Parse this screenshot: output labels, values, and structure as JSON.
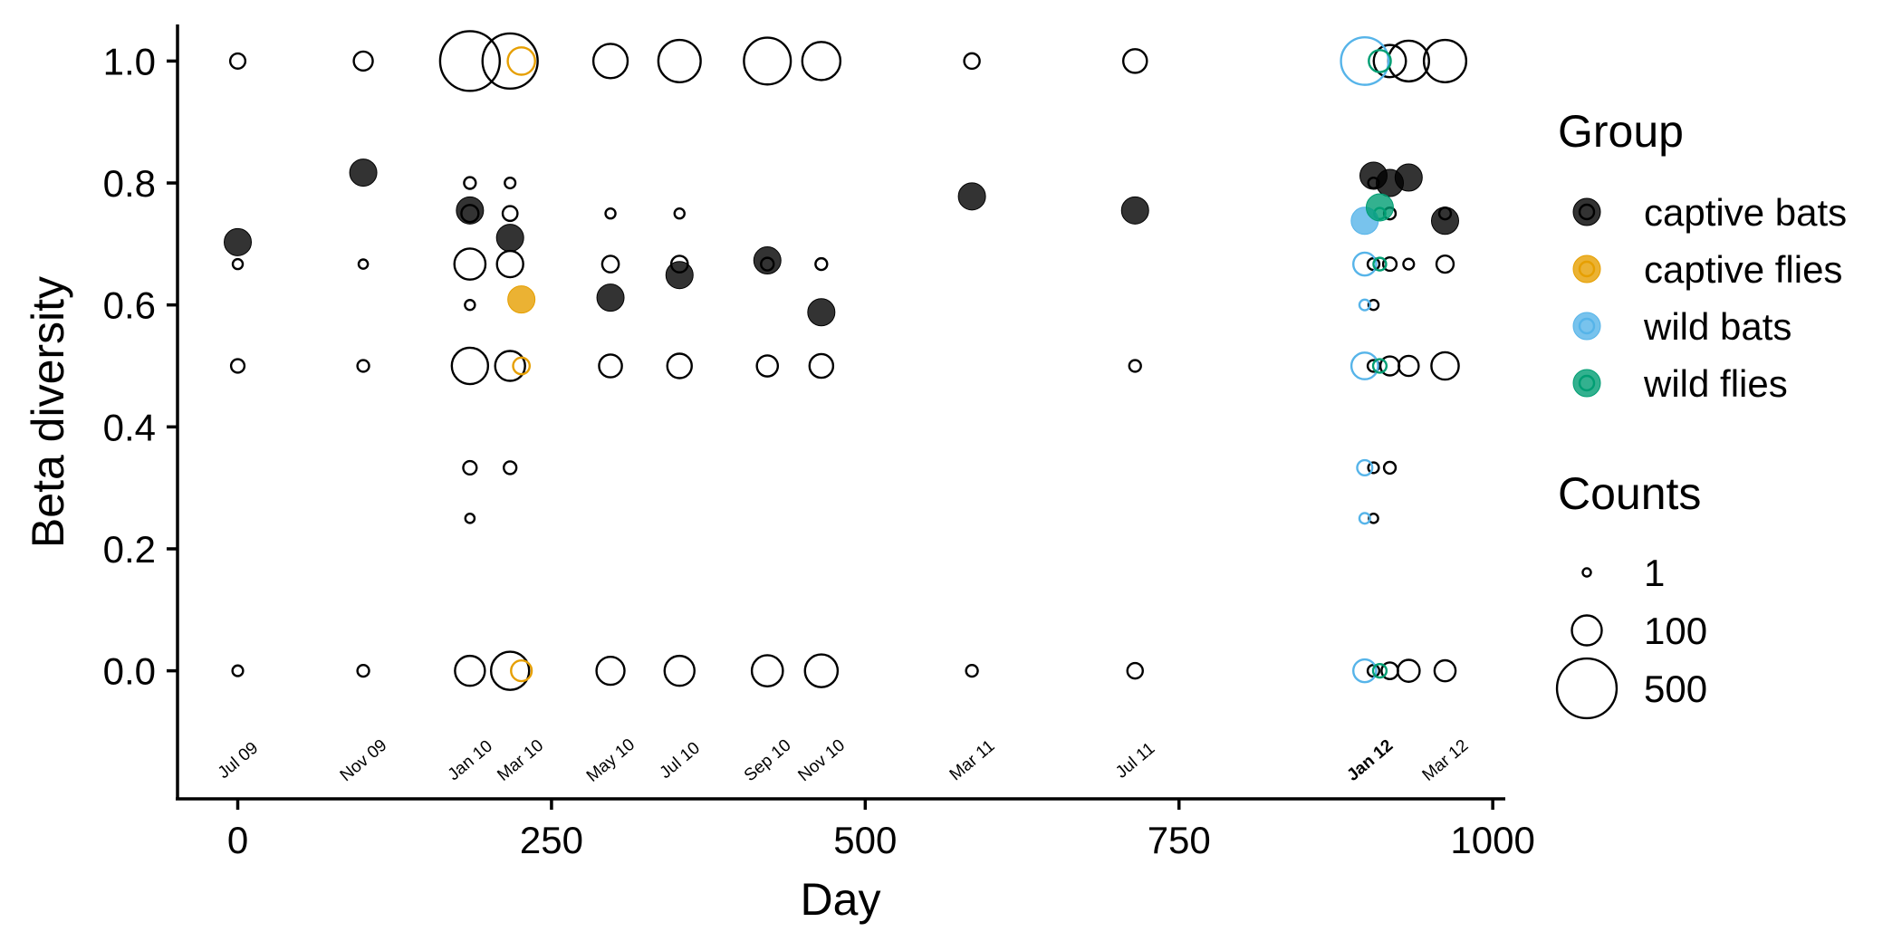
{
  "chart_data": {
    "type": "scatter",
    "title": "",
    "xlabel": "Day",
    "ylabel": "Beta diversity",
    "xlim": [
      -48,
      1010
    ],
    "ylim": [
      -0.21,
      1.06
    ],
    "x_ticks": [
      "0",
      "250",
      "500",
      "750",
      "1000"
    ],
    "x_tick_values": [
      0,
      250,
      500,
      750,
      1000
    ],
    "y_ticks": [
      "0.0",
      "0.2",
      "0.4",
      "0.6",
      "0.8",
      "1.0"
    ],
    "y_tick_values": [
      0,
      0.2,
      0.4,
      0.6,
      0.8,
      1.0
    ],
    "grid": false,
    "legend_placement": "right",
    "date_annotations": [
      {
        "x": 0,
        "label": "Jul 09",
        "bold": false
      },
      {
        "x": 100,
        "label": "Nov 09",
        "bold": false
      },
      {
        "x": 185,
        "label": "Jan 10",
        "bold": false
      },
      {
        "x": 225,
        "label": "Mar 10",
        "bold": false
      },
      {
        "x": 297,
        "label": "May 10",
        "bold": false
      },
      {
        "x": 352,
        "label": "Jul 10",
        "bold": false
      },
      {
        "x": 422,
        "label": "Sep 10",
        "bold": false
      },
      {
        "x": 465,
        "label": "Nov 10",
        "bold": false
      },
      {
        "x": 585,
        "label": "Mar 11",
        "bold": false
      },
      {
        "x": 715,
        "label": "Jul 11",
        "bold": false
      },
      {
        "x": 902,
        "label": "Jan 12",
        "bold": true
      },
      {
        "x": 962,
        "label": "Mar 12",
        "bold": false
      }
    ],
    "groups": [
      {
        "name": "captive bats",
        "color": "#000000"
      },
      {
        "name": "captive flies",
        "color": "#E69F00"
      },
      {
        "name": "wild bats",
        "color": "#56B4E9"
      },
      {
        "name": "wild flies",
        "color": "#009E73"
      }
    ],
    "legend": {
      "group_title": "Group",
      "counts_title": "Counts",
      "counts": [
        {
          "label": "1",
          "value": 1
        },
        {
          "label": "100",
          "value": 100
        },
        {
          "label": "500",
          "value": 500
        }
      ]
    },
    "series": [
      {
        "name": "captive bats",
        "type": "mean",
        "color": "#000000",
        "points": [
          {
            "x": 0,
            "y": 0.703
          },
          {
            "x": 100,
            "y": 0.817
          },
          {
            "x": 185,
            "y": 0.755
          },
          {
            "x": 217,
            "y": 0.71
          },
          {
            "x": 297,
            "y": 0.612
          },
          {
            "x": 352,
            "y": 0.649
          },
          {
            "x": 422,
            "y": 0.673
          },
          {
            "x": 465,
            "y": 0.588
          },
          {
            "x": 585,
            "y": 0.778
          },
          {
            "x": 715,
            "y": 0.755
          },
          {
            "x": 905,
            "y": 0.812
          },
          {
            "x": 918,
            "y": 0.8
          },
          {
            "x": 933,
            "y": 0.809
          },
          {
            "x": 962,
            "y": 0.738
          }
        ]
      },
      {
        "name": "captive flies",
        "type": "mean",
        "color": "#E69F00",
        "points": [
          {
            "x": 226,
            "y": 0.609
          }
        ]
      },
      {
        "name": "wild bats",
        "type": "mean",
        "color": "#56B4E9",
        "points": [
          {
            "x": 898,
            "y": 0.738
          }
        ]
      },
      {
        "name": "wild flies",
        "type": "mean",
        "color": "#009E73",
        "points": [
          {
            "x": 910,
            "y": 0.76
          }
        ]
      },
      {
        "name": "captive bats",
        "type": "counts",
        "color": "#000000",
        "points": [
          {
            "x": 0,
            "y": 1.0,
            "count": 15
          },
          {
            "x": 0,
            "y": 0.667,
            "count": 3
          },
          {
            "x": 0,
            "y": 0.5,
            "count": 10
          },
          {
            "x": 0,
            "y": 0.0,
            "count": 4
          },
          {
            "x": 100,
            "y": 1.0,
            "count": 30
          },
          {
            "x": 100,
            "y": 0.667,
            "count": 2
          },
          {
            "x": 100,
            "y": 0.5,
            "count": 6
          },
          {
            "x": 100,
            "y": 0.0,
            "count": 6
          },
          {
            "x": 185,
            "y": 1.0,
            "count": 500
          },
          {
            "x": 185,
            "y": 0.8,
            "count": 6
          },
          {
            "x": 185,
            "y": 0.75,
            "count": 22
          },
          {
            "x": 185,
            "y": 0.667,
            "count": 110
          },
          {
            "x": 185,
            "y": 0.6,
            "count": 3
          },
          {
            "x": 185,
            "y": 0.5,
            "count": 160
          },
          {
            "x": 185,
            "y": 0.333,
            "count": 10
          },
          {
            "x": 185,
            "y": 0.25,
            "count": 2
          },
          {
            "x": 185,
            "y": 0.0,
            "count": 100
          },
          {
            "x": 217,
            "y": 1.0,
            "count": 420
          },
          {
            "x": 217,
            "y": 0.8,
            "count": 4
          },
          {
            "x": 217,
            "y": 0.75,
            "count": 14
          },
          {
            "x": 217,
            "y": 0.667,
            "count": 72
          },
          {
            "x": 217,
            "y": 0.5,
            "count": 100
          },
          {
            "x": 217,
            "y": 0.333,
            "count": 8
          },
          {
            "x": 217,
            "y": 0.0,
            "count": 180
          },
          {
            "x": 297,
            "y": 1.0,
            "count": 140
          },
          {
            "x": 297,
            "y": 0.75,
            "count": 3
          },
          {
            "x": 297,
            "y": 0.667,
            "count": 20
          },
          {
            "x": 297,
            "y": 0.5,
            "count": 50
          },
          {
            "x": 297,
            "y": 0.0,
            "count": 85
          },
          {
            "x": 352,
            "y": 1.0,
            "count": 230
          },
          {
            "x": 352,
            "y": 0.75,
            "count": 3
          },
          {
            "x": 352,
            "y": 0.667,
            "count": 20
          },
          {
            "x": 352,
            "y": 0.5,
            "count": 60
          },
          {
            "x": 352,
            "y": 0.0,
            "count": 100
          },
          {
            "x": 422,
            "y": 1.0,
            "count": 290
          },
          {
            "x": 422,
            "y": 0.667,
            "count": 8
          },
          {
            "x": 422,
            "y": 0.5,
            "count": 40
          },
          {
            "x": 422,
            "y": 0.0,
            "count": 110
          },
          {
            "x": 465,
            "y": 1.0,
            "count": 180
          },
          {
            "x": 465,
            "y": 0.667,
            "count": 6
          },
          {
            "x": 465,
            "y": 0.5,
            "count": 55
          },
          {
            "x": 465,
            "y": 0.0,
            "count": 125
          },
          {
            "x": 585,
            "y": 1.0,
            "count": 16
          },
          {
            "x": 585,
            "y": 0.0,
            "count": 6
          },
          {
            "x": 715,
            "y": 1.0,
            "count": 55
          },
          {
            "x": 715,
            "y": 0.5,
            "count": 6
          },
          {
            "x": 715,
            "y": 0.0,
            "count": 16
          },
          {
            "x": 905,
            "y": 0.8,
            "count": 4
          },
          {
            "x": 905,
            "y": 0.667,
            "count": 6
          },
          {
            "x": 905,
            "y": 0.6,
            "count": 3
          },
          {
            "x": 905,
            "y": 0.5,
            "count": 6
          },
          {
            "x": 905,
            "y": 0.333,
            "count": 4
          },
          {
            "x": 905,
            "y": 0.25,
            "count": 2
          },
          {
            "x": 905,
            "y": 0.0,
            "count": 6
          },
          {
            "x": 918,
            "y": 1.0,
            "count": 120
          },
          {
            "x": 918,
            "y": 0.75,
            "count": 6
          },
          {
            "x": 918,
            "y": 0.667,
            "count": 10
          },
          {
            "x": 918,
            "y": 0.5,
            "count": 30
          },
          {
            "x": 918,
            "y": 0.333,
            "count": 6
          },
          {
            "x": 918,
            "y": 0.0,
            "count": 20
          },
          {
            "x": 933,
            "y": 1.0,
            "count": 210
          },
          {
            "x": 933,
            "y": 0.667,
            "count": 4
          },
          {
            "x": 933,
            "y": 0.5,
            "count": 35
          },
          {
            "x": 933,
            "y": 0.0,
            "count": 45
          },
          {
            "x": 962,
            "y": 1.0,
            "count": 230
          },
          {
            "x": 962,
            "y": 0.75,
            "count": 6
          },
          {
            "x": 962,
            "y": 0.667,
            "count": 22
          },
          {
            "x": 962,
            "y": 0.5,
            "count": 80
          },
          {
            "x": 962,
            "y": 0.0,
            "count": 40
          }
        ]
      },
      {
        "name": "captive flies",
        "type": "counts",
        "color": "#E69F00",
        "points": [
          {
            "x": 226,
            "y": 1.0,
            "count": 80
          },
          {
            "x": 226,
            "y": 0.5,
            "count": 20
          },
          {
            "x": 226,
            "y": 0.0,
            "count": 38
          }
        ]
      },
      {
        "name": "wild bats",
        "type": "counts",
        "color": "#56B4E9",
        "points": [
          {
            "x": 898,
            "y": 1.0,
            "count": 300
          },
          {
            "x": 898,
            "y": 0.667,
            "count": 50
          },
          {
            "x": 898,
            "y": 0.6,
            "count": 4
          },
          {
            "x": 898,
            "y": 0.5,
            "count": 75
          },
          {
            "x": 898,
            "y": 0.333,
            "count": 15
          },
          {
            "x": 898,
            "y": 0.25,
            "count": 4
          },
          {
            "x": 898,
            "y": 0.0,
            "count": 50
          }
        ]
      },
      {
        "name": "wild flies",
        "type": "counts",
        "color": "#009E73",
        "points": [
          {
            "x": 910,
            "y": 1.0,
            "count": 45
          },
          {
            "x": 910,
            "y": 0.75,
            "count": 5
          },
          {
            "x": 910,
            "y": 0.667,
            "count": 8
          },
          {
            "x": 910,
            "y": 0.5,
            "count": 10
          },
          {
            "x": 910,
            "y": 0.0,
            "count": 10
          }
        ]
      }
    ]
  }
}
